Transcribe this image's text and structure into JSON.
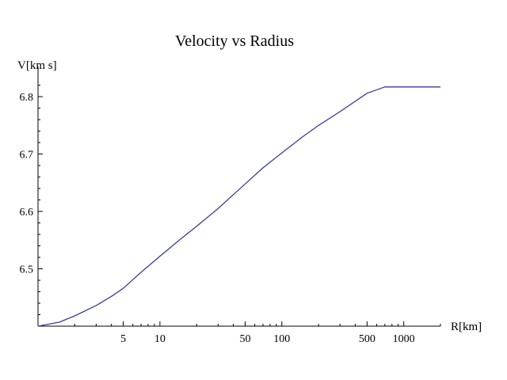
{
  "chart_data": {
    "type": "line",
    "title": "Velocity vs Radius",
    "xlabel": "R[km]",
    "ylabel": "V[km s]",
    "x_scale": "log",
    "xlim": [
      1,
      2000
    ],
    "ylim": [
      6.4,
      6.825
    ],
    "x_ticks": [
      {
        "value": 5,
        "label": "5"
      },
      {
        "value": 10,
        "label": "10"
      },
      {
        "value": 50,
        "label": "50"
      },
      {
        "value": 100,
        "label": "100"
      },
      {
        "value": 500,
        "label": "500"
      },
      {
        "value": 1000,
        "label": "1000"
      }
    ],
    "y_ticks": [
      {
        "value": 6.5,
        "label": "6.5"
      },
      {
        "value": 6.6,
        "label": "6.6"
      },
      {
        "value": 6.7,
        "label": "6.7"
      },
      {
        "value": 6.8,
        "label": "6.8"
      }
    ],
    "grid": false,
    "series": [
      {
        "color": "#3b3b9a",
        "x": [
          1,
          1.5,
          2,
          3,
          4,
          5,
          7,
          10,
          15,
          20,
          30,
          50,
          70,
          100,
          150,
          200,
          300,
          500,
          700,
          1000,
          2000
        ],
        "y": [
          6.4,
          6.407,
          6.418,
          6.436,
          6.452,
          6.466,
          6.494,
          6.522,
          6.553,
          6.574,
          6.605,
          6.648,
          6.676,
          6.702,
          6.731,
          6.75,
          6.774,
          6.806,
          6.817,
          6.817,
          6.817
        ]
      }
    ]
  }
}
